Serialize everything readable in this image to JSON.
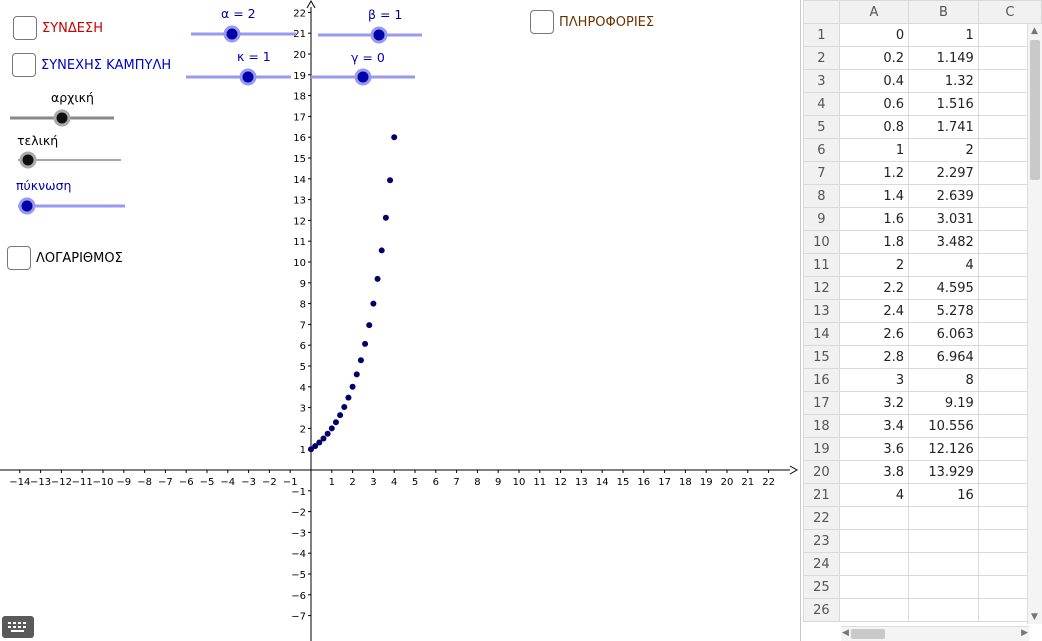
{
  "checkboxes": {
    "syndesi": {
      "label": "ΣΥΝΔΕΣΗ",
      "color": "#cc0000"
    },
    "synexis": {
      "label": "ΣΥΝΕΧΗΣ ΚΑΜΠΥΛΗ",
      "color": "#0000cc"
    },
    "logarithmos": {
      "label": "ΛΟΓΑΡΙΘΜΟΣ",
      "color": "#000000"
    },
    "plirofories": {
      "label": "ΠΛΗΡΟΦΟΡΙΕΣ",
      "color": "#663300"
    }
  },
  "sliders": {
    "alpha": {
      "label": "α = 2",
      "color": "#0000aa"
    },
    "beta": {
      "label": "β = 1",
      "color": "#0000aa"
    },
    "kappa": {
      "label": "κ = 1",
      "color": "#0000aa"
    },
    "gamma": {
      "label": "γ = 0",
      "color": "#0000aa"
    },
    "archiki": {
      "label": "αρχική",
      "color": "#000000"
    },
    "teliki": {
      "label": "τελική",
      "color": "#000000"
    },
    "pyknosi": {
      "label": "πύκνωση",
      "color": "#0000aa"
    }
  },
  "chart_data": {
    "type": "scatter",
    "title": "",
    "xlabel": "",
    "ylabel": "",
    "xlim": [
      -14.5,
      23.5
    ],
    "ylim": [
      -8,
      22.5
    ],
    "x_ticks": [
      -14,
      -13,
      -12,
      -11,
      -10,
      -9,
      -8,
      -7,
      -6,
      -5,
      -4,
      -3,
      -2,
      -1,
      1,
      2,
      3,
      4,
      5,
      6,
      7,
      8,
      9,
      10,
      11,
      12,
      13,
      14,
      15,
      16,
      17,
      18,
      19,
      20,
      21,
      22
    ],
    "y_ticks": [
      -7,
      -6,
      -5,
      -4,
      -3,
      -2,
      -1,
      1,
      2,
      3,
      4,
      5,
      6,
      7,
      8,
      9,
      10,
      11,
      12,
      13,
      14,
      15,
      16,
      17,
      18,
      19,
      20,
      21,
      22
    ],
    "grid": false,
    "point_color": "#000066",
    "points": [
      [
        0,
        1
      ],
      [
        0.2,
        1.149
      ],
      [
        0.4,
        1.32
      ],
      [
        0.6,
        1.516
      ],
      [
        0.8,
        1.741
      ],
      [
        1,
        2
      ],
      [
        1.2,
        2.297
      ],
      [
        1.4,
        2.639
      ],
      [
        1.6,
        3.031
      ],
      [
        1.8,
        3.482
      ],
      [
        2,
        4
      ],
      [
        2.2,
        4.595
      ],
      [
        2.4,
        5.278
      ],
      [
        2.6,
        6.063
      ],
      [
        2.8,
        6.964
      ],
      [
        3,
        8
      ],
      [
        3.2,
        9.19
      ],
      [
        3.4,
        10.556
      ],
      [
        3.6,
        12.126
      ],
      [
        3.8,
        13.929
      ],
      [
        4,
        16
      ]
    ]
  },
  "spreadsheet": {
    "columns": [
      "A",
      "B",
      "C"
    ],
    "rows": [
      {
        "n": "1",
        "a": "0",
        "b": "1"
      },
      {
        "n": "2",
        "a": "0.2",
        "b": "1.149"
      },
      {
        "n": "3",
        "a": "0.4",
        "b": "1.32"
      },
      {
        "n": "4",
        "a": "0.6",
        "b": "1.516"
      },
      {
        "n": "5",
        "a": "0.8",
        "b": "1.741"
      },
      {
        "n": "6",
        "a": "1",
        "b": "2"
      },
      {
        "n": "7",
        "a": "1.2",
        "b": "2.297"
      },
      {
        "n": "8",
        "a": "1.4",
        "b": "2.639"
      },
      {
        "n": "9",
        "a": "1.6",
        "b": "3.031"
      },
      {
        "n": "10",
        "a": "1.8",
        "b": "3.482"
      },
      {
        "n": "11",
        "a": "2",
        "b": "4"
      },
      {
        "n": "12",
        "a": "2.2",
        "b": "4.595"
      },
      {
        "n": "13",
        "a": "2.4",
        "b": "5.278"
      },
      {
        "n": "14",
        "a": "2.6",
        "b": "6.063"
      },
      {
        "n": "15",
        "a": "2.8",
        "b": "6.964"
      },
      {
        "n": "16",
        "a": "3",
        "b": "8"
      },
      {
        "n": "17",
        "a": "3.2",
        "b": "9.19"
      },
      {
        "n": "18",
        "a": "3.4",
        "b": "10.556"
      },
      {
        "n": "19",
        "a": "3.6",
        "b": "12.126"
      },
      {
        "n": "20",
        "a": "3.8",
        "b": "13.929"
      },
      {
        "n": "21",
        "a": "4",
        "b": "16"
      },
      {
        "n": "22",
        "a": "",
        "b": ""
      },
      {
        "n": "23",
        "a": "",
        "b": ""
      },
      {
        "n": "24",
        "a": "",
        "b": ""
      },
      {
        "n": "25",
        "a": "",
        "b": ""
      },
      {
        "n": "26",
        "a": "",
        "b": ""
      }
    ]
  },
  "icons": {
    "keyboard": "keyboard-icon"
  }
}
